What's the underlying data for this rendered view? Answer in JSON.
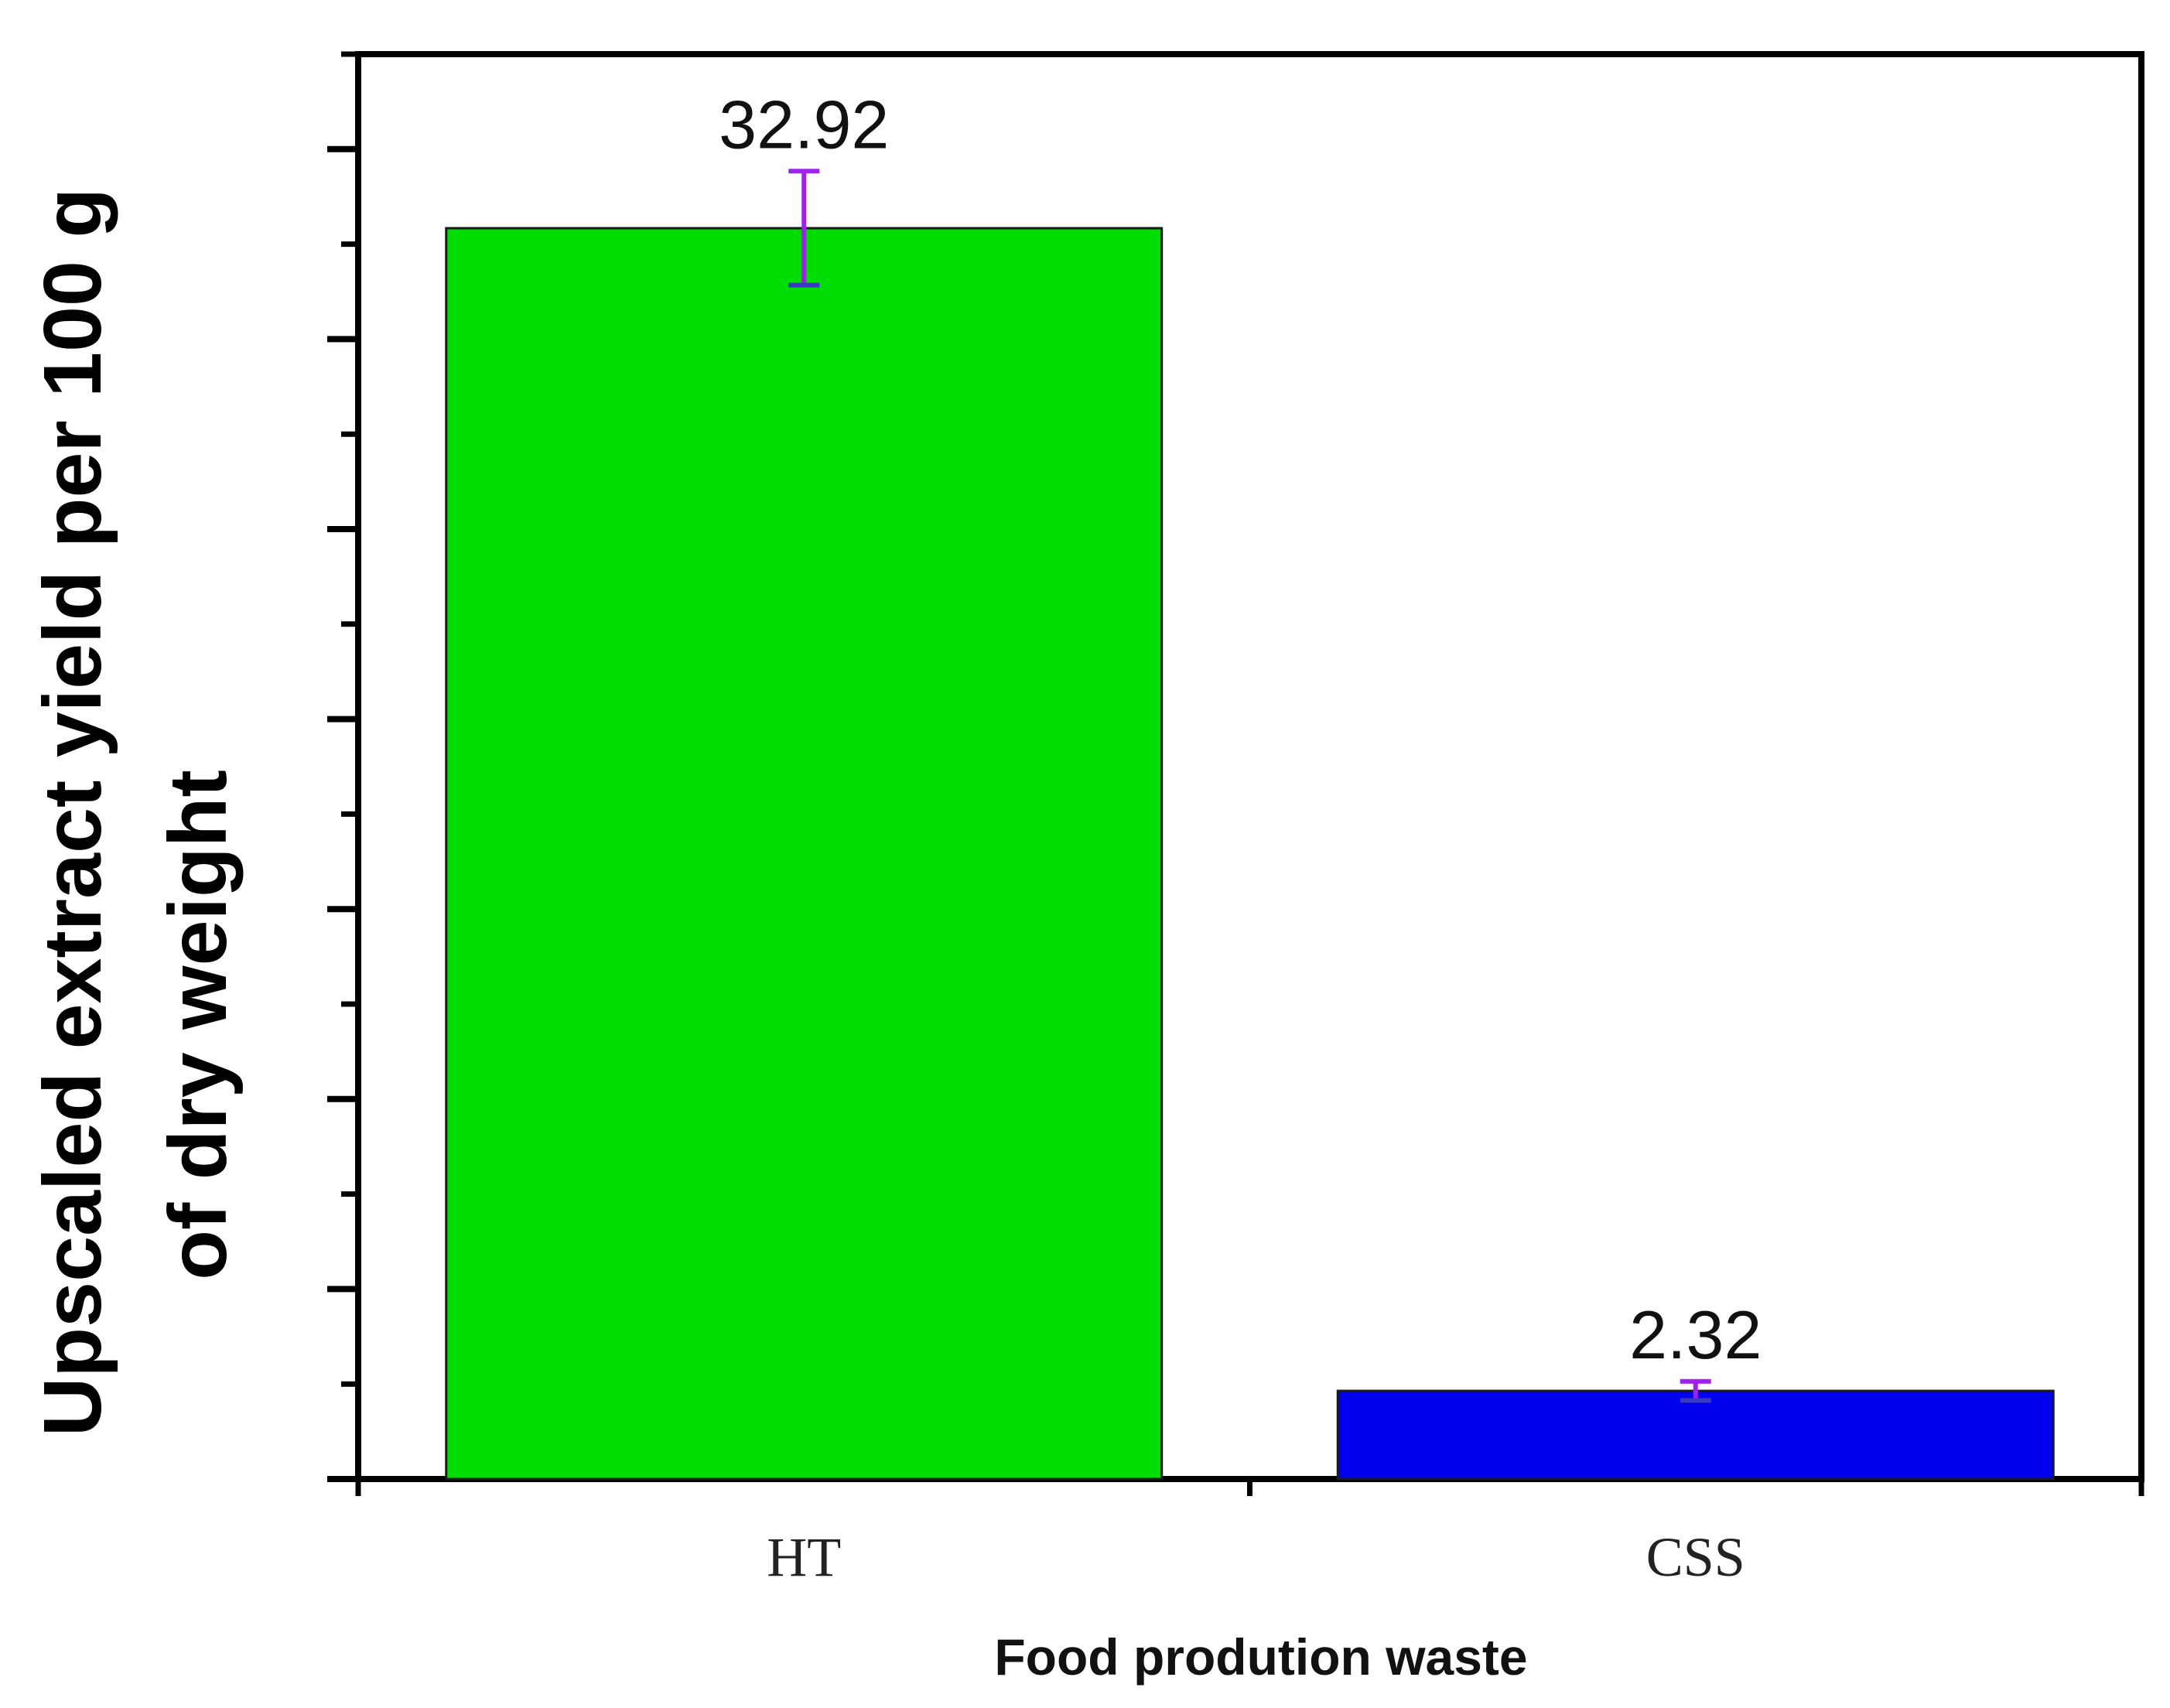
{
  "chart_data": {
    "type": "bar",
    "categories": [
      "HT",
      "CSS"
    ],
    "values": [
      32.92,
      2.32
    ],
    "error": [
      1.5,
      0.25
    ],
    "data_labels": [
      "32.92",
      "2.32"
    ],
    "colors": [
      "#00dd00",
      "#0000ee"
    ],
    "error_color": "#a020f0",
    "ylabel_lines": [
      "Upscaled extract yield per 100 g",
      "of dry weight"
    ],
    "xlabel": "Food prodution waste",
    "ylim": [
      0,
      37.5
    ],
    "major_tick_step": 5,
    "minor_tick_step": 2.5,
    "y_tick_labels_shown": false,
    "grid": false,
    "legend": "none"
  }
}
